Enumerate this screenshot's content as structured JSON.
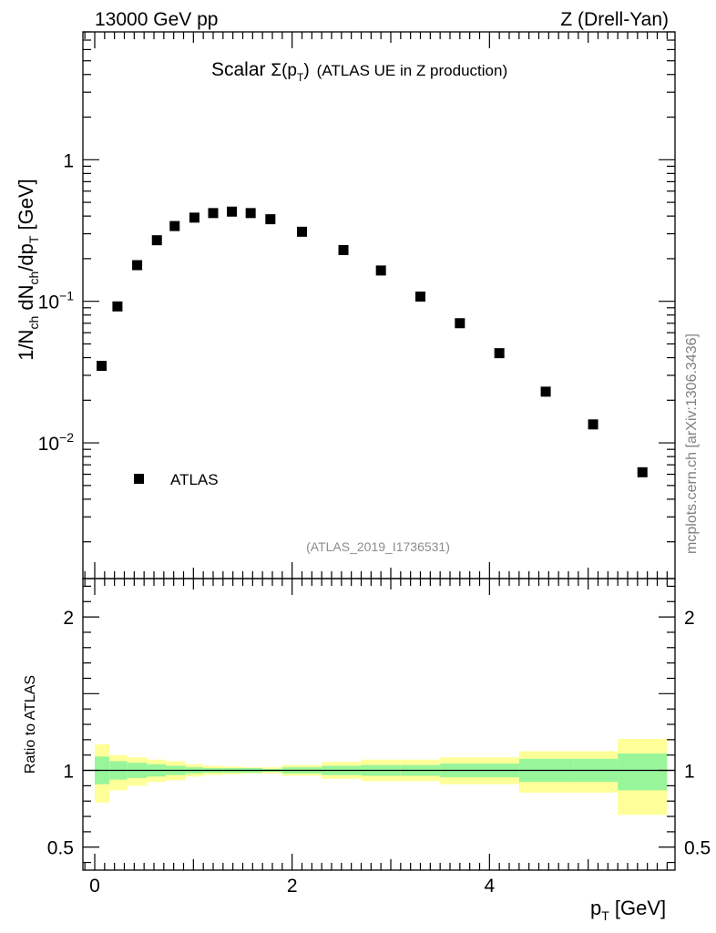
{
  "header": {
    "left": "13000 GeV pp",
    "right": "Z (Drell-Yan)"
  },
  "plot_title": {
    "prefix": "Scalar ",
    "sigma": "Σ(p",
    "sub": "T",
    "close": ")",
    "suffix": "(ATLAS UE in Z production)"
  },
  "ylabel_top": {
    "a": "1/N",
    "a_sub": "ch",
    "b": " dN",
    "b_sub": "ch",
    "c": "/dp",
    "c_sub": "T",
    "d": " [GeV]"
  },
  "ylabel_bottom": "Ratio to ATLAS",
  "xlabel": {
    "main": "p",
    "sub": "T",
    "unit": " [GeV]"
  },
  "watermark": "mcplots.cern.ch [arXiv:1306.3436]",
  "analysis_id": "(ATLAS_2019_I1736531)",
  "legend": {
    "label": "ATLAS",
    "position": "lower-left"
  },
  "chart_data": [
    {
      "type": "scatter",
      "yscale": "log",
      "xlim": [
        -0.12,
        5.88
      ],
      "ylim": [
        0.0011,
        8.0
      ],
      "ytick_labels": [
        {
          "value": 1,
          "main": "1",
          "exp": ""
        },
        {
          "value": 0.1,
          "main": "10",
          "exp": "−1"
        },
        {
          "value": 0.01,
          "main": "10",
          "exp": "−2"
        }
      ],
      "series": [
        {
          "name": "ATLAS",
          "x": [
            0.07,
            0.23,
            0.43,
            0.63,
            0.81,
            1.01,
            1.2,
            1.39,
            1.58,
            1.78,
            2.1,
            2.52,
            2.9,
            3.3,
            3.7,
            4.1,
            4.57,
            5.05,
            5.55
          ],
          "y": [
            0.035,
            0.092,
            0.18,
            0.27,
            0.34,
            0.39,
            0.42,
            0.43,
            0.42,
            0.38,
            0.31,
            0.23,
            0.165,
            0.108,
            0.07,
            0.043,
            0.023,
            0.0135,
            0.0062
          ]
        }
      ]
    },
    {
      "type": "area",
      "xlim": [
        -0.12,
        5.88
      ],
      "ylim": [
        0.35,
        2.25
      ],
      "ytick_labels": [
        {
          "value": 0.5,
          "label": "0.5"
        },
        {
          "value": 1,
          "label": "1"
        },
        {
          "value": 2,
          "label": "2"
        }
      ],
      "xtick_labels": [
        {
          "value": 0,
          "label": "0"
        },
        {
          "value": 2,
          "label": "2"
        },
        {
          "value": 4,
          "label": "4"
        }
      ],
      "reference_line": 1.0,
      "bins": [
        0.0,
        0.15,
        0.33,
        0.53,
        0.72,
        0.92,
        1.1,
        1.3,
        1.5,
        1.7,
        1.9,
        2.3,
        2.7,
        3.1,
        3.5,
        3.9,
        4.3,
        4.85,
        5.3,
        5.8
      ],
      "band_inner": {
        "low": [
          0.91,
          0.94,
          0.95,
          0.96,
          0.97,
          0.98,
          0.985,
          0.985,
          0.985,
          0.99,
          0.98,
          0.97,
          0.965,
          0.965,
          0.955,
          0.955,
          0.925,
          0.925,
          0.87
        ],
        "high": [
          1.09,
          1.06,
          1.05,
          1.04,
          1.03,
          1.02,
          1.015,
          1.015,
          1.015,
          1.01,
          1.02,
          1.03,
          1.035,
          1.035,
          1.045,
          1.045,
          1.075,
          1.075,
          1.11
        ]
      },
      "band_outer": {
        "low": [
          0.79,
          0.87,
          0.9,
          0.925,
          0.935,
          0.96,
          0.97,
          0.975,
          0.98,
          0.98,
          0.965,
          0.945,
          0.93,
          0.93,
          0.91,
          0.91,
          0.855,
          0.855,
          0.71
        ],
        "high": [
          1.17,
          1.1,
          1.085,
          1.07,
          1.06,
          1.04,
          1.03,
          1.025,
          1.02,
          1.02,
          1.035,
          1.055,
          1.07,
          1.07,
          1.085,
          1.085,
          1.125,
          1.125,
          1.205
        ]
      },
      "colors": {
        "inner": "#99f599",
        "outer": "#ffff99",
        "line": "#000000"
      }
    }
  ]
}
